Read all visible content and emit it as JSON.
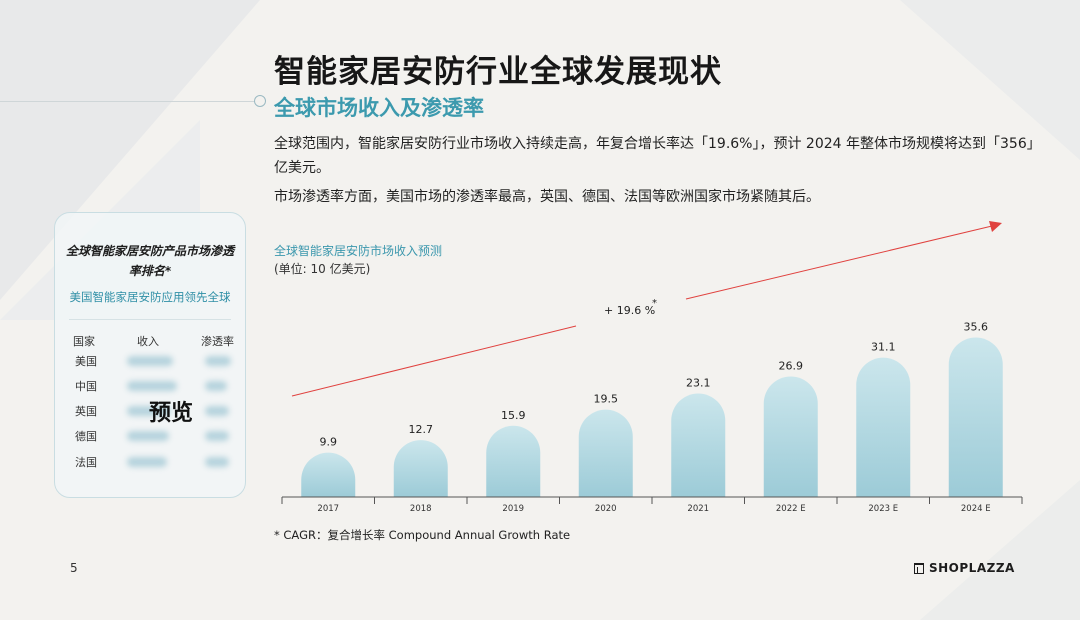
{
  "page": {
    "title": "智能家居安防行业全球发展现状",
    "subtitle": "全球市场收入及渗透率",
    "paragraph_1": "全球范围内，智能家居安防行业市场收入持续走高，年复合增长率达「19.6%」，预计 2024 年整体市场规模将达到「356」亿美元。",
    "paragraph_2": "市场渗透率方面，美国市场的渗透率最高，英国、德国、法国等欧洲国家市场紧随其后。",
    "page_number": "5",
    "brand": "SHOPLAZZA",
    "footnote": "* CAGR：复合增长率 Compound Annual Growth Rate"
  },
  "panel": {
    "title": "全球智能家居安防产品市场渗透率排名*",
    "highlight": "美国智能家居安防应用领先全球",
    "headers": [
      "国家",
      "收入",
      "渗透率"
    ],
    "countries": [
      "美国",
      "中国",
      "英国",
      "德国",
      "法国"
    ],
    "overlay": "预览"
  },
  "chart_data": {
    "type": "bar",
    "title": "全球智能家居安防市场收入预测",
    "unit": "(单位: 10 亿美元)",
    "categories": [
      "2017",
      "2018",
      "2019",
      "2020",
      "2021",
      "2022 E",
      "2023 E",
      "2024 E"
    ],
    "values": [
      9.9,
      12.7,
      15.9,
      19.5,
      23.1,
      26.9,
      31.1,
      35.6
    ],
    "ylim": [
      0,
      40
    ],
    "annotation": "+ 19.6 %",
    "annotation_mark": "*",
    "bar_color": "#b4d8e1",
    "trend_color": "#e0423f"
  }
}
